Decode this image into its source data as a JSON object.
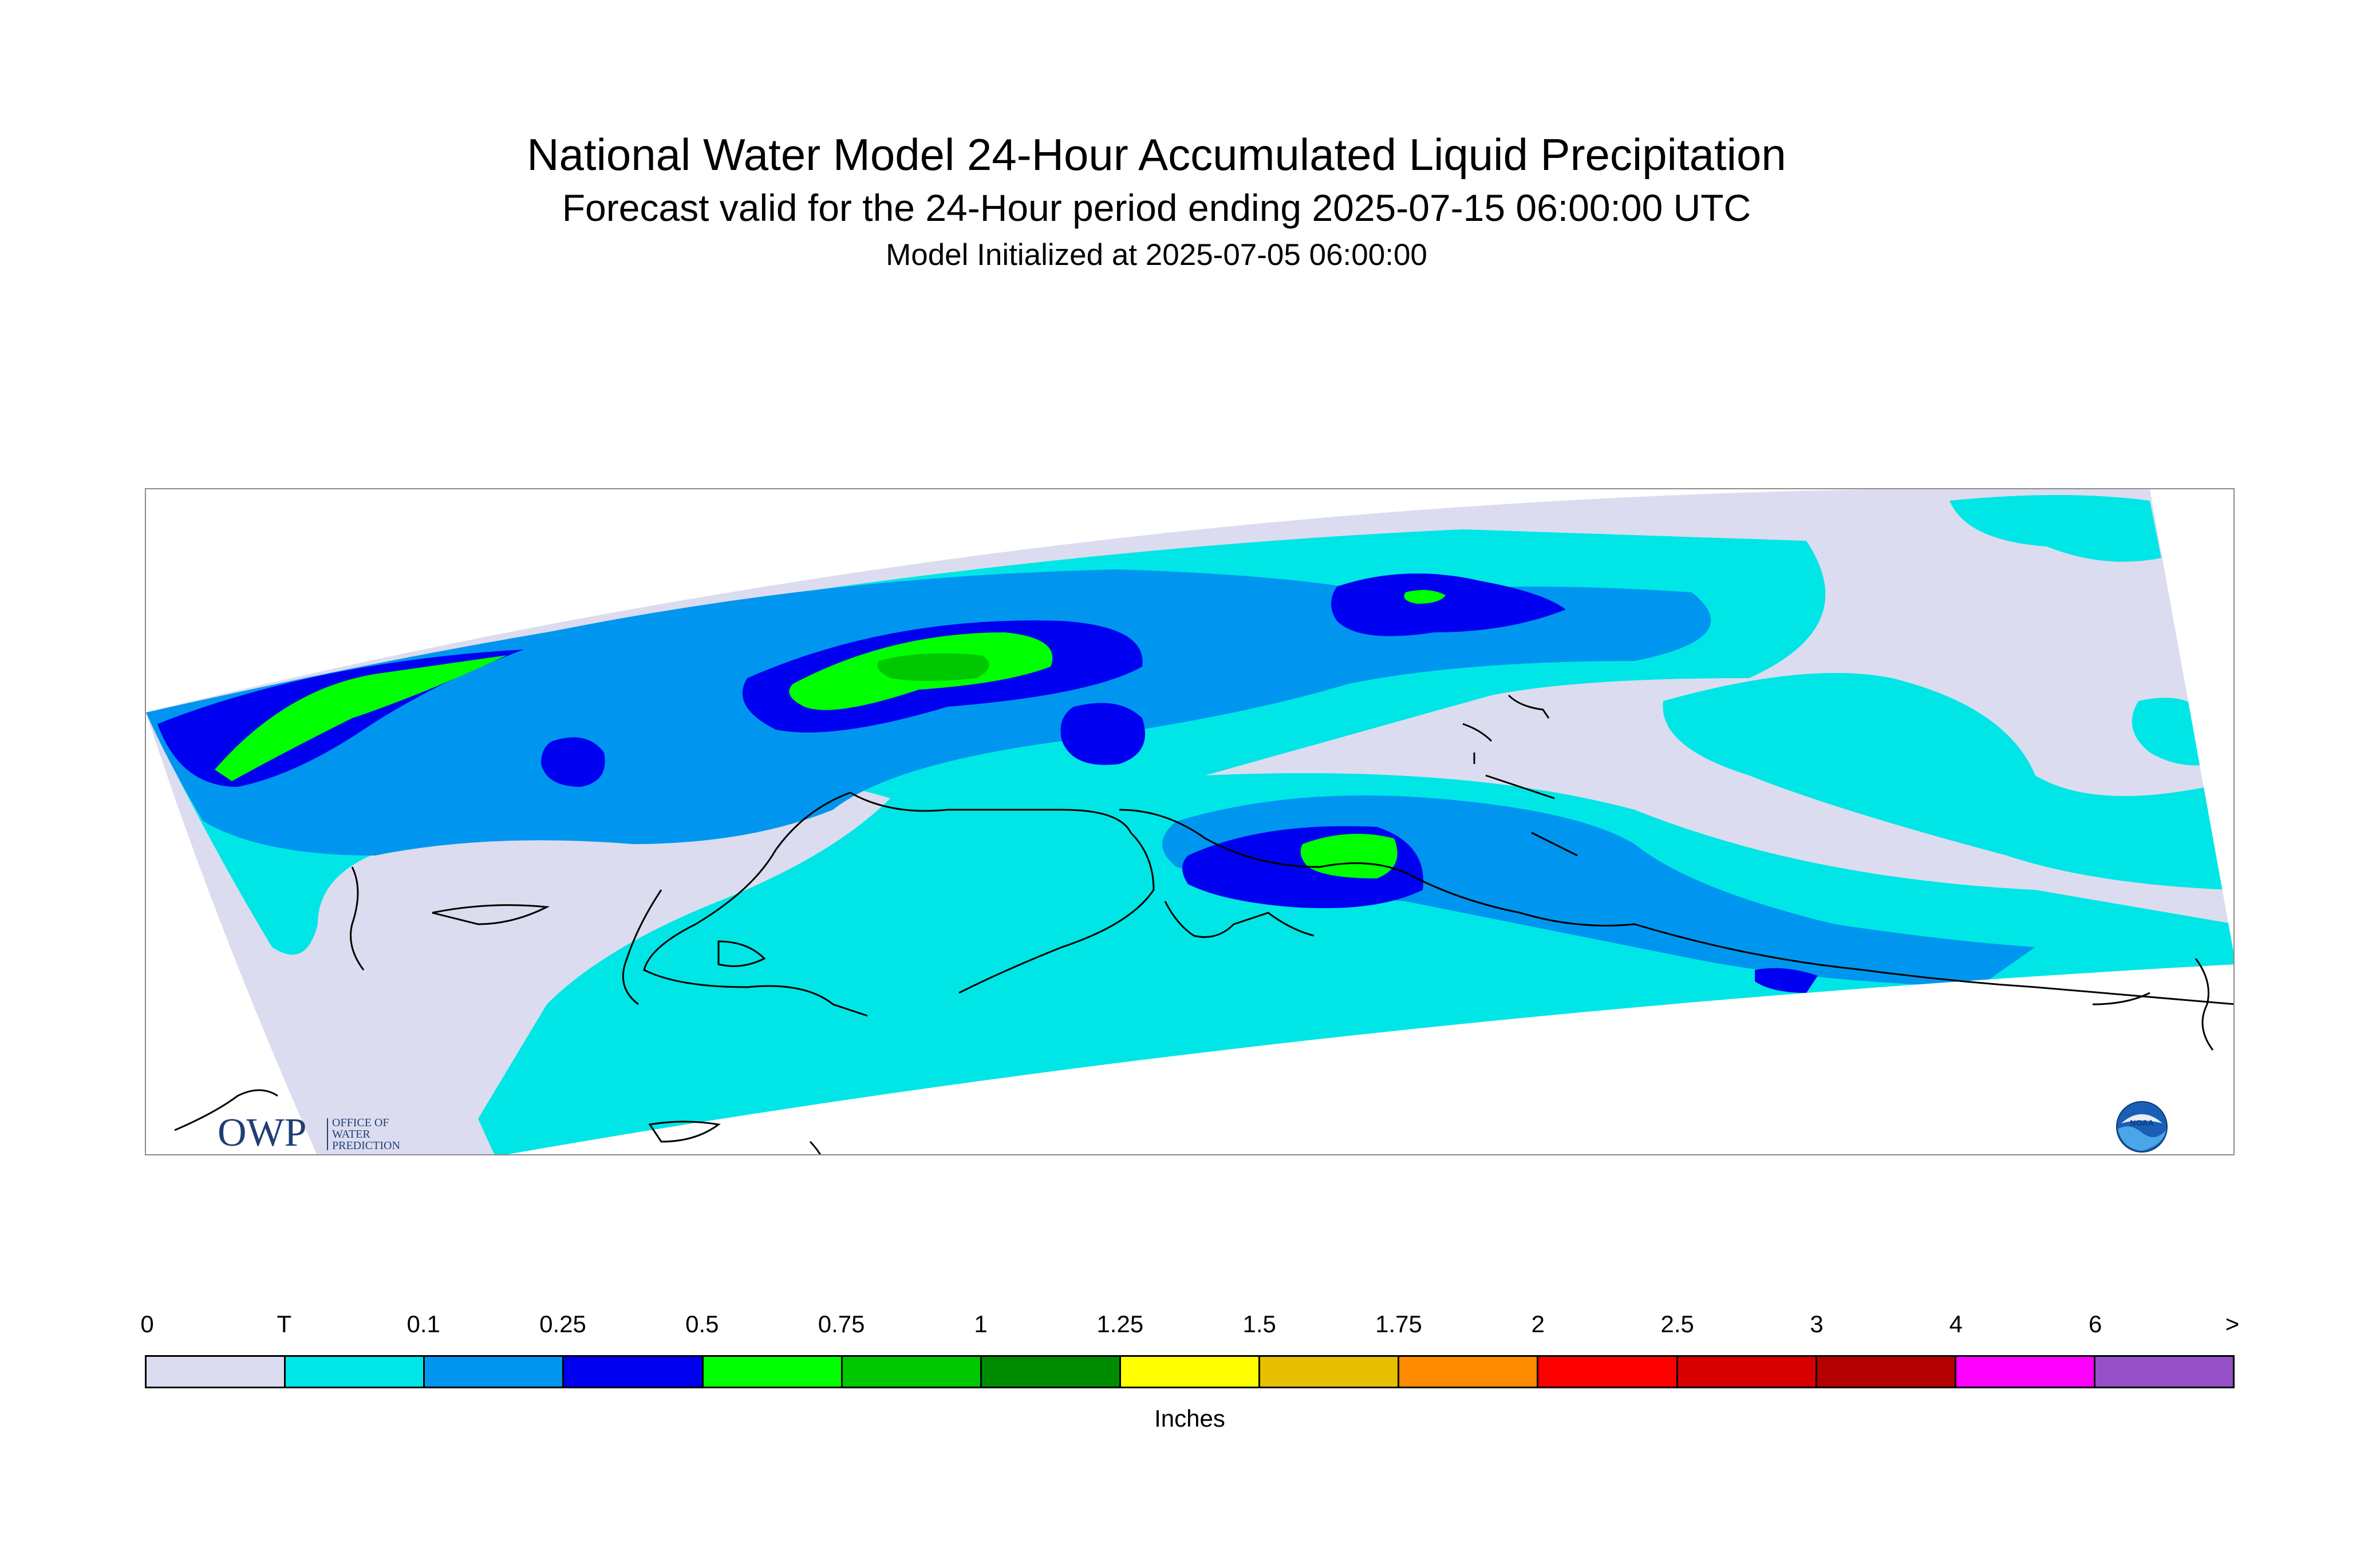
{
  "header": {
    "title": "National Water Model 24-Hour Accumulated Liquid Precipitation",
    "subtitle": "Forecast valid for the 24-Hour period ending 2025-07-15 06:00:00 UTC",
    "initialized": "Model Initialized at 2025-07-05 06:00:00"
  },
  "logos": {
    "owp_mark": "OWP",
    "owp_line1": "OFFICE OF",
    "owp_line2": "WATER",
    "owp_line3": "PREDICTION",
    "owp_icon": "owp-logo-icon",
    "noaa_mark": "NOAA",
    "noaa_icon": "noaa-logo-icon"
  },
  "legend": {
    "tick_labels": [
      "0",
      "T",
      "0.1",
      "0.25",
      "0.5",
      "0.75",
      "1",
      "1.25",
      "1.5",
      "1.75",
      "2",
      "2.5",
      "3",
      "4",
      "6",
      ">"
    ],
    "colors": [
      "#dcdcf0",
      "#00e6e6",
      "#0096f0",
      "#0000f0",
      "#00ff00",
      "#00c800",
      "#008c00",
      "#ffff00",
      "#e6c000",
      "#ff8c00",
      "#ff0000",
      "#d70000",
      "#b40000",
      "#ff00ff",
      "#9650c8"
    ],
    "units": "Inches"
  },
  "map": {
    "palette": {
      "none": "#dcdcf0",
      "trace": "#00e6e6",
      "light": "#0096f0",
      "moderate": "#0000f0",
      "heavy": "#00ff00",
      "heavier": "#00c800",
      "coastline": "#000000"
    }
  }
}
